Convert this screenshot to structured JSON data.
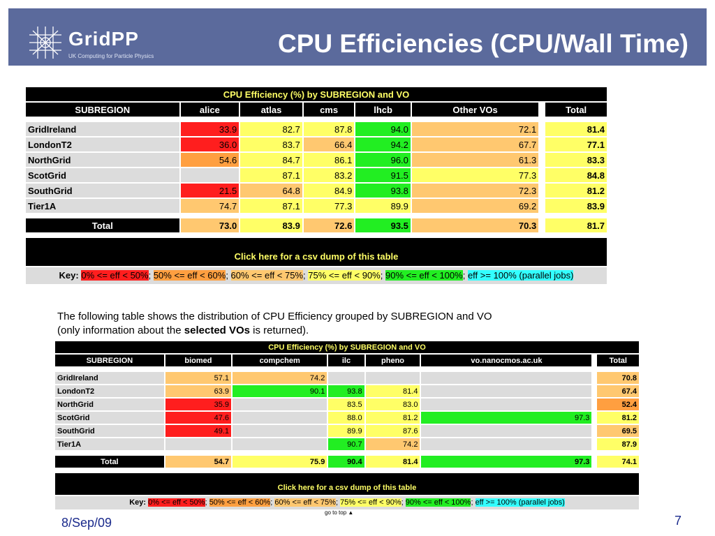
{
  "header": {
    "logo_text": "GridPP",
    "logo_subtitle": "UK Computing for Particle Physics",
    "title": "CPU Efficiencies (CPU/Wall Time)",
    "banner_color": "#5b6a9c"
  },
  "top_cut_text": "",
  "table1": {
    "caption": "CPU Efficiency (%) by SUBREGION and VO",
    "columns": [
      "SUBREGION",
      "alice",
      "atlas",
      "cms",
      "lhcb",
      "Other VOs",
      "Total"
    ],
    "rows": [
      {
        "name": "GridIreland",
        "values": [
          "33.9",
          "82.7",
          "87.8",
          "94.0",
          "72.1",
          "81.4"
        ]
      },
      {
        "name": "LondonT2",
        "values": [
          "36.0",
          "83.7",
          "66.4",
          "94.2",
          "67.7",
          "77.1"
        ]
      },
      {
        "name": "NorthGrid",
        "values": [
          "54.6",
          "84.7",
          "86.1",
          "96.0",
          "61.3",
          "83.3"
        ]
      },
      {
        "name": "ScotGrid",
        "values": [
          "",
          "87.1",
          "83.2",
          "91.5",
          "77.3",
          "84.8"
        ]
      },
      {
        "name": "SouthGrid",
        "values": [
          "21.5",
          "64.8",
          "84.9",
          "93.8",
          "72.3",
          "81.2"
        ]
      },
      {
        "name": "Tier1A",
        "values": [
          "74.7",
          "87.1",
          "77.3",
          "89.9",
          "69.2",
          "83.9"
        ]
      }
    ],
    "total": {
      "name": "Total",
      "values": [
        "73.0",
        "83.9",
        "72.6",
        "93.5",
        "70.3",
        "81.7"
      ]
    },
    "csv_link": "Click here for a csv dump of this table"
  },
  "key": {
    "label": "Key:",
    "items": [
      "0% <= eff < 50%",
      "50% <= eff < 60%",
      "60% <= eff < 75%",
      "75% <= eff < 90%",
      "90% <= eff < 100%",
      "eff >= 100% (parallel jobs)"
    ],
    "colors": [
      "#ff1e1e",
      "#ff9f40",
      "#ffc870",
      "#ffff66",
      "#22ee22",
      "#33ffff"
    ]
  },
  "description": {
    "line1": "The following table shows the distribution of CPU Efficiency grouped by SUBREGION and VO",
    "line2_before": "(only information about the ",
    "line2_bold": "selected VOs",
    "line2_after": " is returned)."
  },
  "table2": {
    "caption": "CPU Efficiency (%) by SUBREGION and VO",
    "columns": [
      "SUBREGION",
      "biomed",
      "compchem",
      "ilc",
      "pheno",
      "vo.nanocmos.ac.uk",
      "Total"
    ],
    "rows": [
      {
        "name": "GridIreland",
        "values": [
          "57.1",
          "74.2",
          "",
          "",
          "",
          "70.8"
        ]
      },
      {
        "name": "LondonT2",
        "values": [
          "63.9",
          "90.1",
          "93.8",
          "81.4",
          "",
          "67.4"
        ]
      },
      {
        "name": "NorthGrid",
        "values": [
          "35.9",
          "",
          "83.5",
          "83.0",
          "",
          "52.4"
        ]
      },
      {
        "name": "ScotGrid",
        "values": [
          "47.6",
          "",
          "88.0",
          "81.2",
          "97.3",
          "81.2"
        ]
      },
      {
        "name": "SouthGrid",
        "values": [
          "49.1",
          "",
          "89.9",
          "87.6",
          "",
          "69.5"
        ]
      },
      {
        "name": "Tier1A",
        "values": [
          "",
          "",
          "90.7",
          "74.2",
          "",
          "87.9"
        ]
      }
    ],
    "total": {
      "name": "Total",
      "values": [
        "54.7",
        "75.9",
        "90.4",
        "81.4",
        "97.3",
        "74.1"
      ]
    },
    "csv_link": "Click here for a csv dump of this table"
  },
  "goto_top": "go to top",
  "footer": {
    "date": "8/Sep/09",
    "page": "7"
  }
}
